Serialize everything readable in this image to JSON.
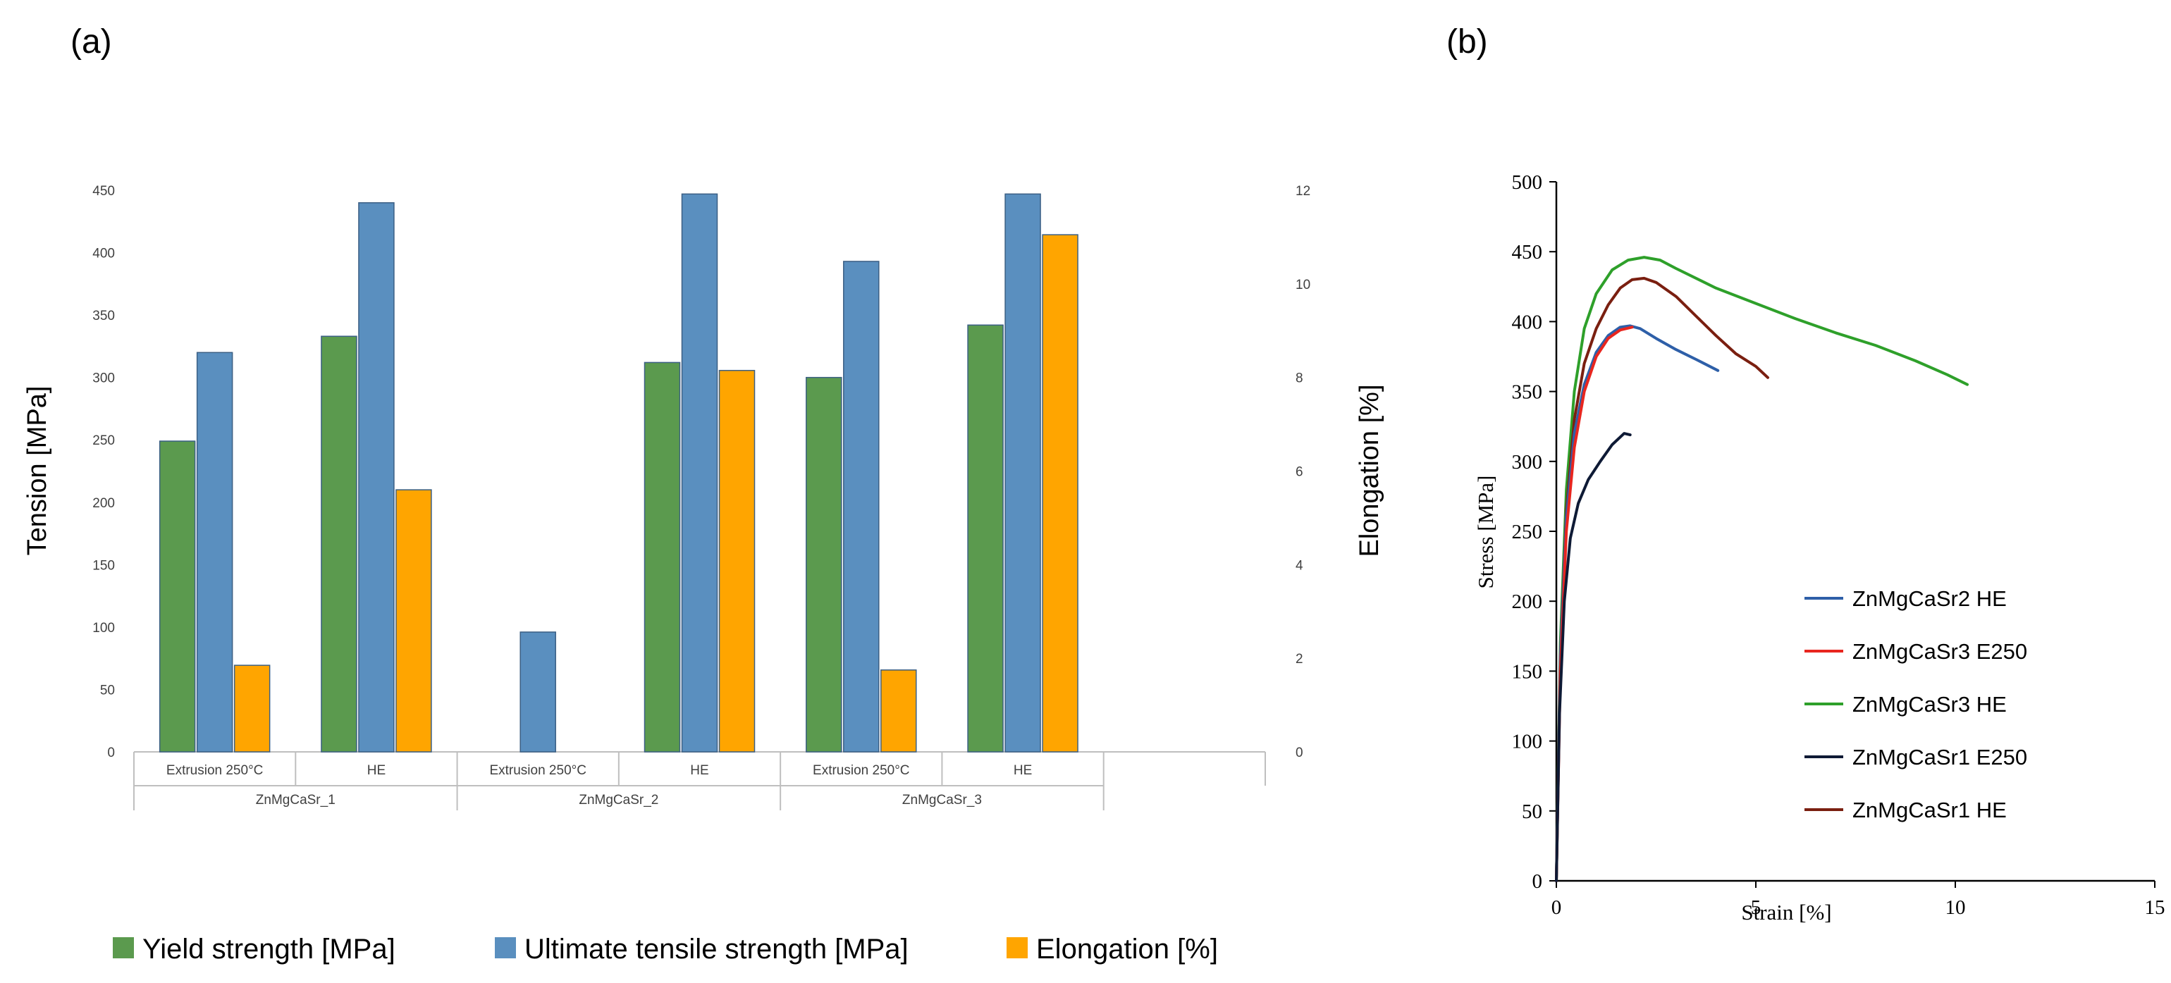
{
  "panel_labels": {
    "a": "(a)",
    "b": "(b)"
  },
  "colors": {
    "yield": "#5b9a4e",
    "uts": "#5a8fbf",
    "elong": "#ffa500",
    "axis": "#bfbfbf",
    "text": "#404040",
    "black": "#000000"
  },
  "chart_data": [
    {
      "id": "a",
      "type": "bar",
      "title": "",
      "ylabel": "Tension [MPa]",
      "y2label": "Elongation [%]",
      "ylim": [
        0,
        450
      ],
      "y2lim": [
        0,
        12
      ],
      "yticks": [
        0,
        50,
        100,
        150,
        200,
        250,
        300,
        350,
        400,
        450
      ],
      "y2ticks": [
        0,
        2,
        4,
        6,
        8,
        10,
        12
      ],
      "categories": [
        "Extrusion 250°C",
        "HE",
        "Extrusion 250°C",
        "HE",
        "Extrusion 250°C",
        "HE",
        ""
      ],
      "groups": [
        "ZnMgCaSr_1",
        "ZnMgCaSr_2",
        "ZnMgCaSr_3",
        ""
      ],
      "series": [
        {
          "name": "Yield strength [MPa]",
          "axis": "left",
          "color": "#5b9a4e",
          "values": [
            249,
            333,
            null,
            312,
            300,
            342,
            null
          ]
        },
        {
          "name": "Ultimate tensile strength [MPa]",
          "axis": "left",
          "color": "#5a8fbf",
          "values": [
            320,
            440,
            96,
            447,
            393,
            447,
            null
          ]
        },
        {
          "name": "Elongation [%]",
          "axis": "right",
          "color": "#ffa500",
          "values": [
            1.85,
            5.6,
            null,
            8.15,
            1.75,
            11.05,
            null
          ]
        }
      ],
      "legend": "bottom"
    },
    {
      "id": "b",
      "type": "line",
      "title": "",
      "xlabel": "Strain [%]",
      "ylabel": "Stress [MPa]",
      "xlim": [
        0,
        15
      ],
      "ylim": [
        0,
        500
      ],
      "xticks": [
        0,
        5,
        10,
        15
      ],
      "yticks": [
        0,
        50,
        100,
        150,
        200,
        250,
        300,
        350,
        400,
        450,
        500
      ],
      "legend": "center-right",
      "series": [
        {
          "name": "ZnMgCaSr2 HE",
          "color": "#2e5fa8",
          "x": [
            0,
            0.1,
            0.25,
            0.45,
            0.7,
            1.0,
            1.3,
            1.6,
            1.85,
            2.1,
            2.5,
            3.0,
            3.5,
            4.05
          ],
          "y": [
            0,
            160,
            260,
            320,
            355,
            378,
            390,
            396,
            397,
            395,
            388,
            380,
            373,
            365
          ]
        },
        {
          "name": "ZnMgCaSr3 E250",
          "color": "#e8261f",
          "x": [
            0,
            0.1,
            0.25,
            0.45,
            0.7,
            1.0,
            1.3,
            1.6,
            1.9
          ],
          "y": [
            0,
            150,
            250,
            310,
            350,
            375,
            388,
            394,
            396
          ]
        },
        {
          "name": "ZnMgCaSr3 HE",
          "color": "#2ea02a",
          "x": [
            0,
            0.1,
            0.25,
            0.45,
            0.7,
            1.0,
            1.4,
            1.8,
            2.2,
            2.6,
            3.0,
            4.0,
            5.0,
            6.0,
            7.0,
            8.0,
            9.0,
            9.8,
            10.3
          ],
          "y": [
            0,
            170,
            280,
            350,
            395,
            420,
            437,
            444,
            446,
            444,
            438,
            424,
            413,
            402,
            392,
            383,
            372,
            362,
            355
          ]
        },
        {
          "name": "ZnMgCaSr1 E250",
          "color": "#0e1a35",
          "x": [
            0,
            0.08,
            0.2,
            0.35,
            0.55,
            0.8,
            1.1,
            1.4,
            1.7,
            1.85
          ],
          "y": [
            0,
            120,
            200,
            245,
            270,
            287,
            300,
            312,
            320,
            319
          ]
        },
        {
          "name": "ZnMgCaSr1 HE",
          "color": "#7a1f10",
          "x": [
            0,
            0.1,
            0.25,
            0.45,
            0.7,
            1.0,
            1.3,
            1.6,
            1.9,
            2.2,
            2.5,
            3.0,
            3.5,
            4.0,
            4.5,
            5.0,
            5.3
          ],
          "y": [
            0,
            160,
            265,
            330,
            370,
            395,
            412,
            424,
            430,
            431,
            428,
            418,
            404,
            390,
            377,
            368,
            360
          ]
        }
      ]
    }
  ]
}
